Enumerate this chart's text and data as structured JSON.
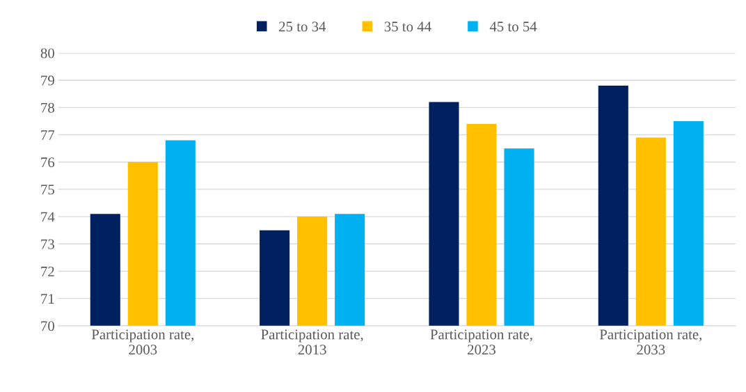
{
  "chart_data": {
    "type": "bar",
    "categories": [
      "Participation rate,\n2003",
      "Participation rate,\n2013",
      "Participation rate,\n2023",
      "Participation rate,\n2033"
    ],
    "series": [
      {
        "name": "25 to 34",
        "color": "#002060",
        "values": [
          74.1,
          73.5,
          78.2,
          78.8
        ]
      },
      {
        "name": "35 to 44",
        "color": "#ffc000",
        "values": [
          76.0,
          74.0,
          77.4,
          76.9
        ]
      },
      {
        "name": "45 to 54",
        "color": "#00b0f0",
        "values": [
          76.8,
          74.1,
          76.5,
          77.5
        ]
      }
    ],
    "ylim": [
      70,
      80
    ],
    "yticks": [
      70,
      71,
      72,
      73,
      74,
      75,
      76,
      77,
      78,
      79,
      80
    ],
    "grid": "y",
    "legend": "top"
  }
}
